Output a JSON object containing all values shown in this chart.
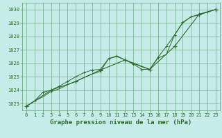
{
  "title": "Graphe pression niveau de la mer (hPa)",
  "background_color": "#c5ece9",
  "grid_color": "#5a9a6a",
  "line_color": "#2d6a2d",
  "marker_color": "#2d6a2d",
  "xlim": [
    -0.5,
    23.5
  ],
  "ylim": [
    1022.5,
    1030.5
  ],
  "yticks": [
    1023,
    1024,
    1025,
    1026,
    1027,
    1028,
    1029,
    1030
  ],
  "xticks": [
    0,
    1,
    2,
    3,
    4,
    5,
    6,
    7,
    8,
    9,
    10,
    11,
    12,
    13,
    14,
    15,
    16,
    17,
    18,
    19,
    20,
    21,
    22,
    23
  ],
  "series1_x": [
    0,
    1,
    2,
    3,
    4,
    5,
    6,
    7,
    8,
    9,
    10,
    11,
    12,
    13,
    14,
    15,
    16,
    17,
    18,
    19,
    20,
    21,
    22,
    23
  ],
  "series1_y": [
    1022.8,
    1023.2,
    1023.5,
    1023.9,
    1024.1,
    1024.4,
    1024.65,
    1024.95,
    1025.2,
    1025.4,
    1026.35,
    1026.5,
    1026.25,
    1026.0,
    1025.75,
    1025.55,
    1026.4,
    1026.65,
    1028.1,
    1029.0,
    1029.45,
    1029.6,
    1029.8,
    1030.0
  ],
  "series2_x": [
    0,
    1,
    2,
    3,
    4,
    5,
    6,
    7,
    8,
    9,
    10,
    11,
    12,
    13,
    14,
    15,
    16,
    17,
    18,
    19,
    20,
    21,
    22,
    23
  ],
  "series2_y": [
    1022.8,
    1023.2,
    1023.85,
    1024.0,
    1024.3,
    1024.65,
    1025.0,
    1025.3,
    1025.5,
    1025.55,
    1026.35,
    1026.55,
    1026.25,
    1025.95,
    1025.55,
    1025.55,
    1026.45,
    1027.25,
    1028.1,
    1029.05,
    1029.45,
    1029.65,
    1029.82,
    1030.0
  ],
  "series3_x": [
    0,
    3,
    6,
    9,
    12,
    15,
    18,
    21,
    23
  ],
  "series3_y": [
    1022.8,
    1024.0,
    1024.65,
    1025.5,
    1026.25,
    1025.55,
    1027.25,
    1029.65,
    1030.0
  ],
  "title_fontsize": 6.5,
  "tick_fontsize": 5.0
}
